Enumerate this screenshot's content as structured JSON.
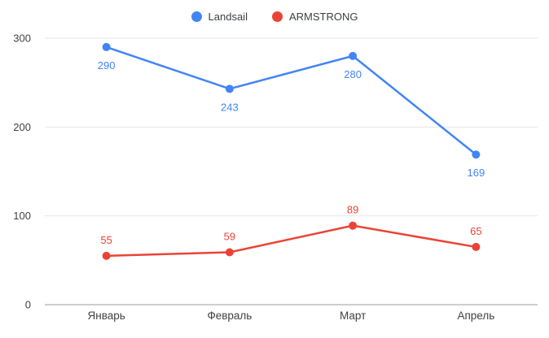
{
  "chart_data": {
    "type": "line",
    "categories": [
      "Январь",
      "Февраль",
      "Март",
      "Апрель"
    ],
    "series": [
      {
        "name": "Landsail",
        "color": "#4285f4",
        "values": [
          290,
          243,
          280,
          169
        ],
        "label_position": "below"
      },
      {
        "name": "ARMSTRONG",
        "color": "#ea4335",
        "values": [
          55,
          59,
          89,
          65
        ],
        "label_position": "above"
      }
    ],
    "ylim": [
      0,
      300
    ],
    "yticks": [
      0,
      100,
      200,
      300
    ],
    "grid": true,
    "legend_position": "top"
  },
  "style_colors": {
    "gridline": "#e6e6e6",
    "baseline": "#9e9e9e",
    "tick_text": "#424242"
  }
}
